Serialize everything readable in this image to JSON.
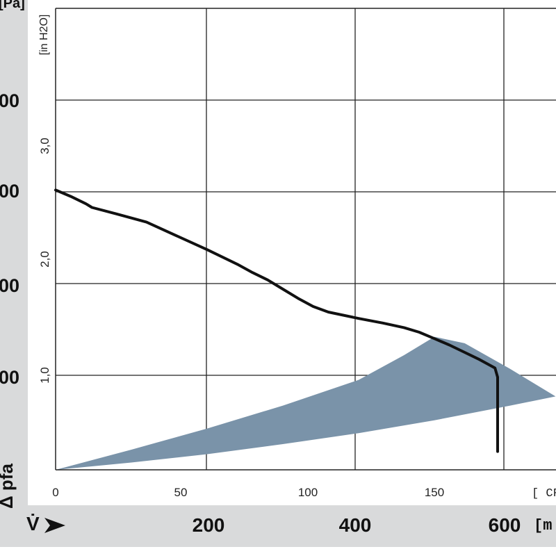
{
  "chart_data": {
    "type": "line",
    "x_unit": "[ CFM ]",
    "x_ticks": [
      0,
      50,
      100,
      150
    ],
    "xlim": [
      0,
      165
    ],
    "y_unit": "[in H2O]",
    "y_ticks": [
      1.0,
      2.0,
      3.0
    ],
    "ylim": [
      0,
      5
    ],
    "secondary_x_unit": "[m",
    "secondary_x_ticks": [
      "200",
      "400",
      "600"
    ],
    "secondary_y_ticks": [
      "00",
      "00",
      "00",
      "00"
    ],
    "secondary_y_unit": "[Pa]",
    "y_axis_symbol": "Δ pfa",
    "x_axis_symbol": "V̇",
    "series": [
      {
        "x": [
          0,
          5,
          10,
          12,
          20,
          30,
          40,
          50,
          60,
          65,
          70,
          75,
          80,
          85,
          90,
          100,
          108,
          115,
          120,
          125,
          130,
          135,
          140,
          145,
          150,
          155,
          160,
          164,
          168,
          172,
          175,
          178
        ],
        "y": [
          3.05,
          2.98,
          2.9,
          2.86,
          2.79,
          2.7,
          2.55,
          2.4,
          2.24,
          2.15,
          2.07,
          1.97,
          1.87,
          1.78,
          1.72,
          1.65,
          1.6,
          1.55,
          1.5,
          1.43,
          1.36,
          1.28,
          1.2,
          1.11,
          1.01,
          0.91,
          0.8,
          0.7,
          0.58,
          0.45,
          0.33,
          0.2
        ]
      }
    ],
    "operating_area": {
      "color": "#7a93a9",
      "lower_x": [
        0,
        25,
        50,
        75,
        100,
        125,
        150,
        165
      ],
      "lower_y": [
        0.0,
        0.08,
        0.17,
        0.28,
        0.4,
        0.54,
        0.7,
        0.8
      ],
      "upper_x": [
        0,
        25,
        50,
        75,
        100,
        115,
        125,
        135,
        150,
        165
      ],
      "upper_y": [
        0.0,
        0.22,
        0.45,
        0.7,
        0.98,
        1.25,
        1.45,
        1.38,
        1.1,
        0.8
      ]
    },
    "grid": true,
    "curve_color": "#111111"
  }
}
